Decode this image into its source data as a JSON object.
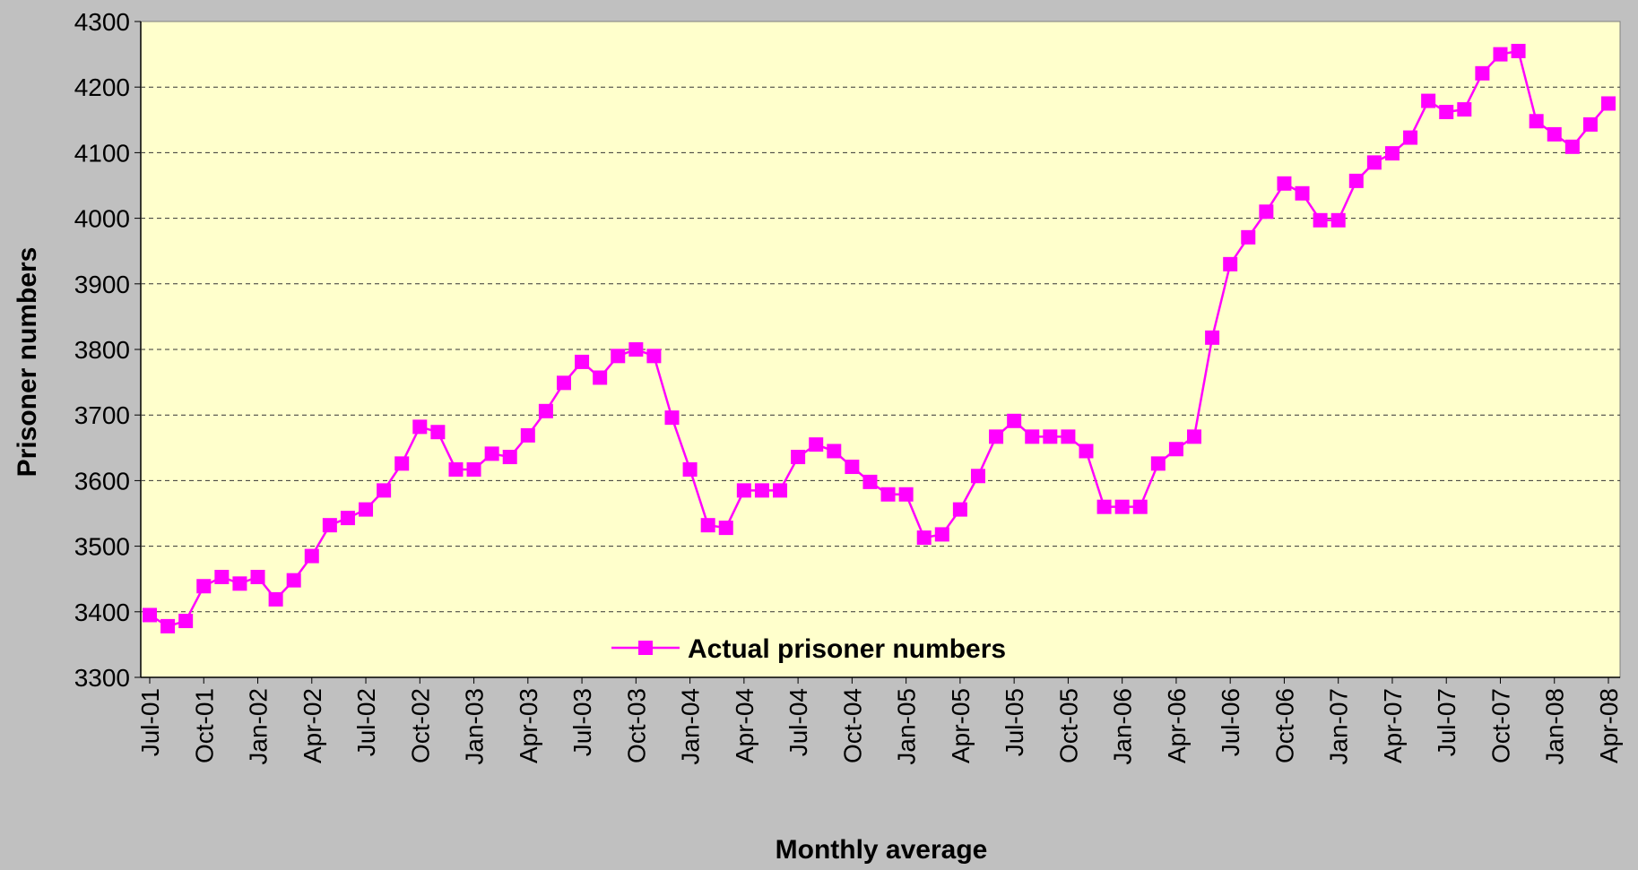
{
  "chart_data": {
    "type": "line",
    "xlabel": "Monthly average",
    "ylabel": "Prisoner numbers",
    "categories": [
      "Jul-01",
      null,
      null,
      "Oct-01",
      null,
      null,
      "Jan-02",
      null,
      null,
      "Apr-02",
      null,
      null,
      "Jul-02",
      null,
      null,
      "Oct-02",
      null,
      null,
      "Jan-03",
      null,
      null,
      "Apr-03",
      null,
      null,
      "Jul-03",
      null,
      null,
      "Oct-03",
      null,
      null,
      "Jan-04",
      null,
      null,
      "Apr-04",
      null,
      null,
      "Jul-04",
      null,
      null,
      "Oct-04",
      null,
      null,
      "Jan-05",
      null,
      null,
      "Apr-05",
      null,
      null,
      "Jul-05",
      null,
      null,
      "Oct-05",
      null,
      null,
      "Jan-06",
      null,
      null,
      "Apr-06",
      null,
      null,
      "Jul-06",
      null,
      null,
      "Oct-06",
      null,
      null,
      "Jan-07",
      null,
      null,
      "Apr-07",
      null,
      null,
      "Jul-07",
      null,
      null,
      "Oct-07",
      null,
      null,
      "Jan-08",
      null,
      null,
      "Apr-08"
    ],
    "series": [
      {
        "name": "Actual prisoner numbers",
        "color": "#ff00ff",
        "values": [
          3395,
          3378,
          3386,
          3439,
          3453,
          3443,
          3453,
          3419,
          3448,
          3485,
          3532,
          3543,
          3556,
          3585,
          3626,
          3682,
          3674,
          3617,
          3617,
          3641,
          3636,
          3669,
          3706,
          3749,
          3781,
          3757,
          3790,
          3800,
          3790,
          3696,
          3617,
          3532,
          3528,
          3585,
          3585,
          3585,
          3636,
          3655,
          3645,
          3621,
          3598,
          3579,
          3579,
          3513,
          3518,
          3556,
          3607,
          3667,
          3691,
          3667,
          3667,
          3667,
          3645,
          3560,
          3560,
          3560,
          3626,
          3648,
          3667,
          3818,
          3930,
          3971,
          4010,
          4053,
          4038,
          3997,
          3997,
          4057,
          4085,
          4099,
          4123,
          4179,
          4162,
          4166,
          4221,
          4250,
          4255,
          4148,
          4128,
          4109,
          4143,
          4175
        ]
      }
    ],
    "ylim": [
      3300,
      4300
    ],
    "yticks": [
      3300,
      3400,
      3500,
      3600,
      3700,
      3800,
      3900,
      4000,
      4100,
      4200,
      4300
    ],
    "grid": true,
    "legend": "bottom"
  }
}
